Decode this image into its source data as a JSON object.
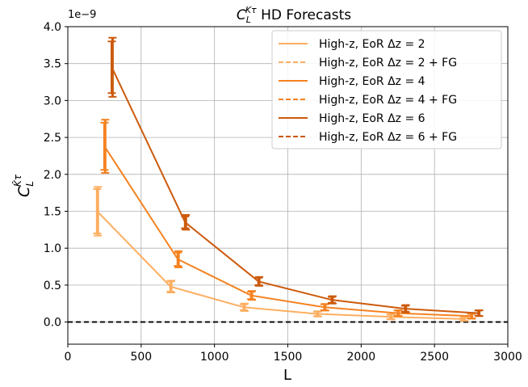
{
  "chart_data": {
    "type": "line",
    "title": "C_L^{κτ} HD Forecasts",
    "title_main": "C",
    "title_sub": "L",
    "title_sup": "Kτ",
    "title_rest": " HD Forecasts",
    "xlabel": "L",
    "ylabel_main": "C",
    "ylabel_sub": "L",
    "ylabel_sup": "K̂τ",
    "y_offset_label": "1e−9",
    "xlim": [
      0,
      3000
    ],
    "ylim": [
      -0.3,
      4.0
    ],
    "xticks": [
      0,
      500,
      1000,
      1500,
      2000,
      2500,
      3000
    ],
    "xtick_labels": [
      "0",
      "500",
      "1000",
      "1500",
      "2000",
      "2500",
      "3000"
    ],
    "yticks": [
      0.0,
      0.5,
      1.0,
      1.5,
      2.0,
      2.5,
      3.0,
      3.5,
      4.0
    ],
    "ytick_labels": [
      "0.0",
      "0.5",
      "1.0",
      "1.5",
      "2.0",
      "2.5",
      "3.0",
      "3.5",
      "4.0"
    ],
    "grid": true,
    "legend_position": "top-right",
    "zero_line": {
      "y": 0,
      "style": "dashed",
      "color": "#000000"
    },
    "series": [
      {
        "name": "High-z, EoR Δz = 2",
        "color": "#fdae61",
        "style": "solid",
        "x": [
          200,
          700,
          1200,
          1700,
          2200,
          2700
        ],
        "y": [
          1.5,
          0.48,
          0.2,
          0.11,
          0.07,
          0.04
        ],
        "err": [
          0.3,
          0.07,
          0.04,
          0.03,
          0.03,
          0.02
        ]
      },
      {
        "name": "High-z, EoR Δz = 2 + FG",
        "color": "#fdae61",
        "style": "dashed",
        "x": [
          205,
          705,
          1205,
          1705,
          2205,
          2705
        ],
        "y": [
          1.5,
          0.48,
          0.2,
          0.11,
          0.07,
          0.04
        ],
        "err": [
          0.33,
          0.08,
          0.05,
          0.035,
          0.035,
          0.025
        ]
      },
      {
        "name": "High-z, EoR Δz = 4",
        "color": "#f58220",
        "style": "solid",
        "x": [
          250,
          750,
          1250,
          1750,
          2250,
          2750
        ],
        "y": [
          2.38,
          0.85,
          0.36,
          0.2,
          0.12,
          0.08
        ],
        "err": [
          0.32,
          0.09,
          0.05,
          0.04,
          0.035,
          0.03
        ]
      },
      {
        "name": "High-z, EoR Δz = 4 + FG",
        "color": "#f58220",
        "style": "dashed",
        "x": [
          255,
          755,
          1255,
          1755,
          2255,
          2755
        ],
        "y": [
          2.38,
          0.85,
          0.36,
          0.2,
          0.12,
          0.08
        ],
        "err": [
          0.36,
          0.11,
          0.06,
          0.045,
          0.04,
          0.035
        ]
      },
      {
        "name": "High-z, EoR Δz = 6",
        "color": "#cc5a0c",
        "style": "solid",
        "x": [
          300,
          800,
          1300,
          1800,
          2300,
          2800
        ],
        "y": [
          3.45,
          1.35,
          0.55,
          0.3,
          0.18,
          0.12
        ],
        "err": [
          0.35,
          0.08,
          0.05,
          0.04,
          0.04,
          0.035
        ]
      },
      {
        "name": "High-z, EoR Δz = 6 + FG",
        "color": "#cc5a0c",
        "style": "dashed",
        "x": [
          305,
          805,
          1305,
          1805,
          2305,
          2805
        ],
        "y": [
          3.45,
          1.35,
          0.55,
          0.3,
          0.18,
          0.12
        ],
        "err": [
          0.4,
          0.1,
          0.06,
          0.05,
          0.05,
          0.04
        ]
      }
    ]
  }
}
